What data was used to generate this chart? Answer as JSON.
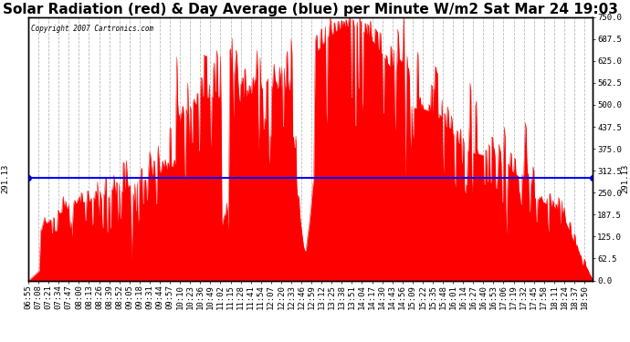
{
  "title": "Solar Radiation (red) & Day Average (blue) per Minute W/m2 Sat Mar 24 19:03",
  "copyright": "Copyright 2007 Cartronics.com",
  "ylabel_right_values": [
    750.0,
    687.5,
    625.0,
    562.5,
    500.0,
    437.5,
    375.0,
    312.5,
    250.0,
    187.5,
    125.0,
    62.5,
    0.0
  ],
  "day_average": 291.13,
  "ymax": 750.0,
  "ymin": 0.0,
  "fill_color": "#FF0000",
  "line_color": "#FF0000",
  "avg_line_color": "#0000FF",
  "background_color": "#FFFFFF",
  "grid_color": "#BBBBBB",
  "title_fontsize": 11,
  "tick_fontsize": 6.5,
  "start_time": "06:55",
  "end_time": "19:01",
  "tick_interval_minutes": 13
}
